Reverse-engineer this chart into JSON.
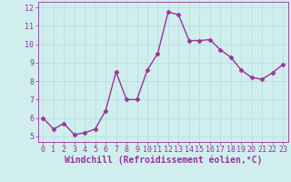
{
  "x": [
    0,
    1,
    2,
    3,
    4,
    5,
    6,
    7,
    8,
    9,
    10,
    11,
    12,
    13,
    14,
    15,
    16,
    17,
    18,
    19,
    20,
    21,
    22,
    23
  ],
  "y": [
    6.0,
    5.4,
    5.7,
    5.1,
    5.2,
    5.4,
    6.4,
    8.5,
    7.0,
    7.0,
    8.6,
    9.5,
    11.75,
    11.6,
    10.2,
    10.2,
    10.25,
    9.7,
    9.3,
    8.6,
    8.2,
    8.1,
    8.45,
    8.9
  ],
  "line_color": "#993399",
  "marker": "D",
  "marker_size": 2.5,
  "xlabel": "Windchill (Refroidissement éolien,°C)",
  "xlim": [
    -0.5,
    23.5
  ],
  "ylim": [
    4.7,
    12.3
  ],
  "yticks": [
    5,
    6,
    7,
    8,
    9,
    10,
    11,
    12
  ],
  "xticks": [
    0,
    1,
    2,
    3,
    4,
    5,
    6,
    7,
    8,
    9,
    10,
    11,
    12,
    13,
    14,
    15,
    16,
    17,
    18,
    19,
    20,
    21,
    22,
    23
  ],
  "grid_color": "#b0dede",
  "bg_color": "#d0eeee",
  "xlabel_fontsize": 7.0,
  "tick_fontsize": 6.0,
  "line_color_hex": "#993399",
  "spine_color": "#993399",
  "line_width": 1.0
}
